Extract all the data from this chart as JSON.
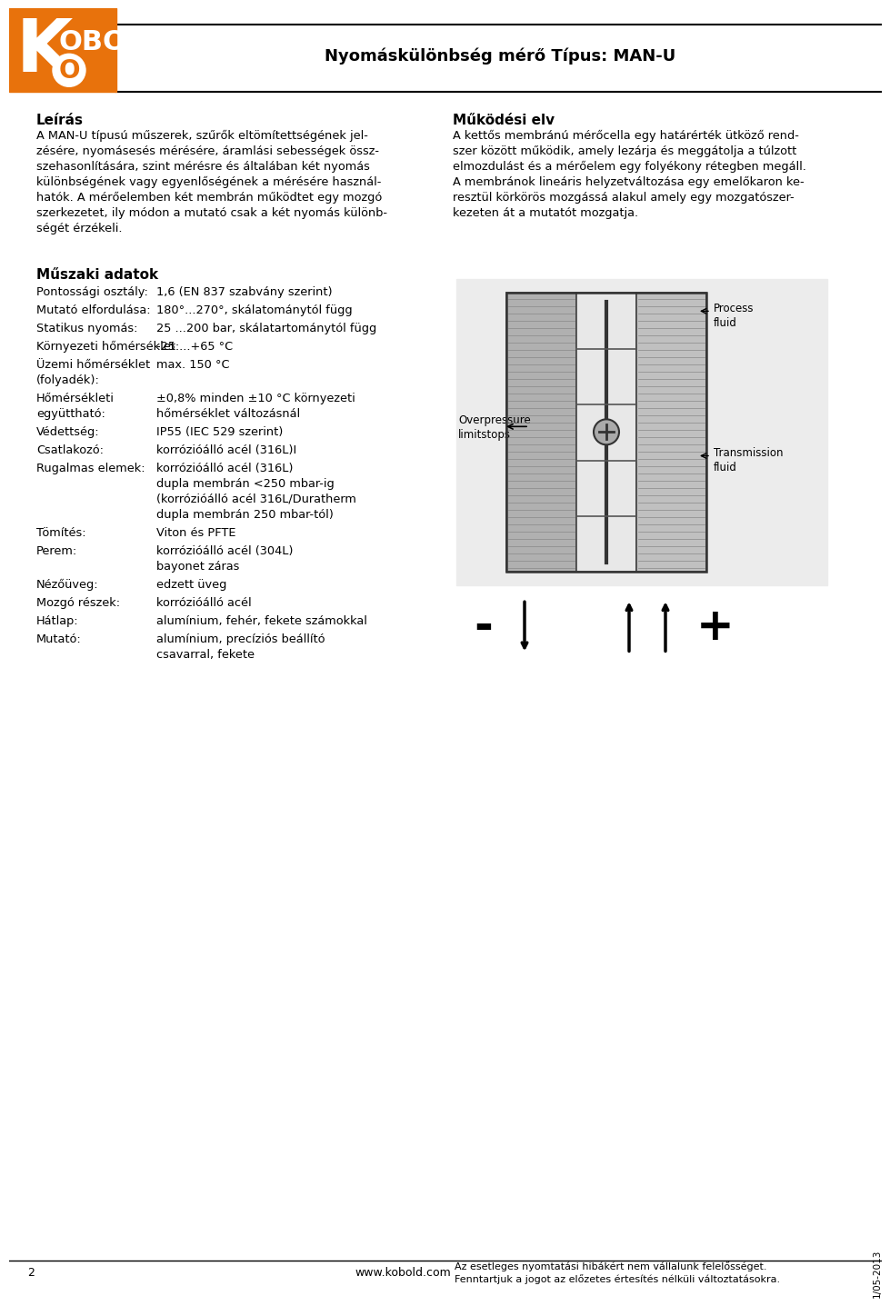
{
  "page_width": 9.6,
  "page_height": 14.15,
  "bg_color": "#ffffff",
  "header_title": "Nyomáskülönbség mérő Típus: MAN-U",
  "header_orange": "#E8720C",
  "logo_k": "K",
  "logo_rest": "OBOLD",
  "section_left_title": "Leírás",
  "section_left_body": "A MAN-U típusú műszerek, szűrők eltömítettségének jelzésére, nyomásesés mérésére, áramlási sebességek összehasonlítására, szint mérésre és általában két nyomás különbségének vagy egyenlőségének a mérésére használhatók. A mérőelemben két membrán működtet egy mozgó szerkezetet, ily módon a mutató csak a két nyomás különbségét érzékeli.",
  "section_right_title": "Működési elv",
  "section_right_body": "A kettős membránú mérőcella egy határérték ütköző rendszer között működik, amely lezárja és meggátolja a túlzott elmozdulást és a mérőelem egy folyékony rétegben megáll. A membránok lineáris helyzetváltozása egy emelőkaron keresztül körkörös mozgássá alakul amely egy mozgatószerkezeten át a mutatót mozgatja.",
  "tech_title": "Műszaki adatok",
  "tech_items": [
    {
      "label": "Pontossági osztály:",
      "value": "1,6 (EN 837 szabvány szerint)"
    },
    {
      "label": "Mutató elfordulása:",
      "value": "180°...270°, skálatománytól függ"
    },
    {
      "label": "Statikus nyomás:",
      "value": "25 ...200 bar, skálatartománytól függ"
    },
    {
      "label": "Környezeti hőmérséklet:",
      "value": "-25 ...+65 °C"
    },
    {
      "label": "Üzemi hőmérséklet\n(folyadék):",
      "value": "max. 150 °C"
    },
    {
      "label": "Hőmérsékleti\negyüttható:",
      "value": "±0,8% minden ±10 °C környezeti\nhőmérséklet változásnál"
    },
    {
      "label": "Védettség:",
      "value": "IP55 (IEC 529 szerint)"
    },
    {
      "label": "Csatlakozó:",
      "value": "korrózióálló acél (316L)I"
    },
    {
      "label": "Rugalmas elemek:",
      "value": "korrózióálló acél (316L)\ndupla membrán <250 mbar-ig\n(korrózióálló acél 316L/Duratherm\ndupla membrán 250 mbar-tól)"
    },
    {
      "label": "Tömítés:",
      "value": "Viton és PFTE"
    },
    {
      "label": "Perem:",
      "value": "korrózióálló acél (304L)\nbayonet záras"
    },
    {
      "label": "Nézőüveg:",
      "value": "edzett üveg"
    },
    {
      "label": "Mozgó részek:",
      "value": "korrózióálló acél"
    },
    {
      "label": "Hátlap:",
      "value": "alumínium, fehér, fekete számokkal"
    },
    {
      "label": "Mutató:",
      "value": "alumínium, precíziós beállító\ncsavarral, fekete"
    }
  ],
  "footer_page": "2",
  "footer_url": "www.kobold.com",
  "footer_notice1": "Az esetleges nyomtatási hibákért nem vállalunk felelősséget.",
  "footer_notice2": "Fenntartjuk a jogot az előzetes értesítés nélküli változtatásokra.",
  "footer_date": "1/05-2013",
  "diagram_label_left": "Overpressure\nlimitstops",
  "diagram_label_right1": "Process\nfluid",
  "diagram_label_right2": "Transmission\nfluid",
  "diagram_minus": "-",
  "diagram_plus": "+"
}
